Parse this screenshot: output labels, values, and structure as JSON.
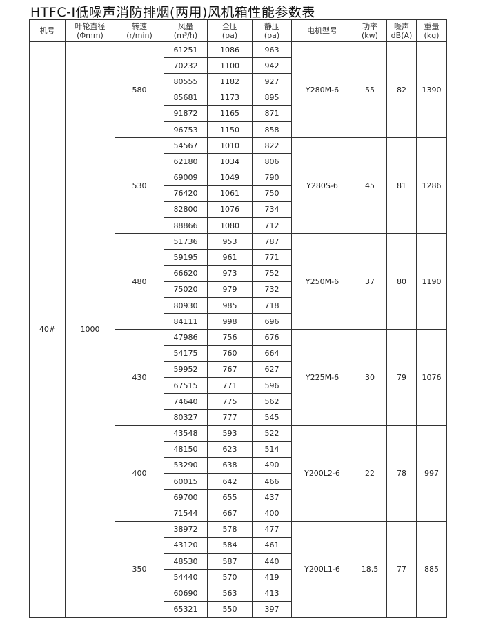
{
  "title": "HTFC-Ⅰ低噪声消防排烟(两用)风机箱性能参数表",
  "headers": [
    {
      "top": "机号",
      "bottom": ""
    },
    {
      "top": "叶轮直径",
      "bottom": "(Φmm)"
    },
    {
      "top": "转速",
      "bottom": "(r/min)"
    },
    {
      "top": "风量",
      "bottom": "(m³/h)"
    },
    {
      "top": "全压",
      "bottom": "(pa)"
    },
    {
      "top": "静压",
      "bottom": "(pa)"
    },
    {
      "top": "电机型号",
      "bottom": ""
    },
    {
      "top": "功率",
      "bottom": "(kw)"
    },
    {
      "top": "噪声",
      "bottom": "dB(A)"
    },
    {
      "top": "重量",
      "bottom": "(kg)"
    }
  ],
  "machine_no": "40#",
  "impeller_diameter": "1000",
  "groups": [
    {
      "speed": "580",
      "motor": "Y280M-6",
      "power": "55",
      "noise": "82",
      "weight": "1390",
      "rows": [
        [
          "61251",
          "1086",
          "963"
        ],
        [
          "70232",
          "1100",
          "942"
        ],
        [
          "80555",
          "1182",
          "927"
        ],
        [
          "85681",
          "1173",
          "895"
        ],
        [
          "91872",
          "1165",
          "871"
        ],
        [
          "96753",
          "1150",
          "858"
        ]
      ]
    },
    {
      "speed": "530",
      "motor": "Y280S-6",
      "power": "45",
      "noise": "81",
      "weight": "1286",
      "rows": [
        [
          "54567",
          "1010",
          "822"
        ],
        [
          "62180",
          "1034",
          "806"
        ],
        [
          "69009",
          "1049",
          "790"
        ],
        [
          "76420",
          "1061",
          "750"
        ],
        [
          "82800",
          "1076",
          "734"
        ],
        [
          "88866",
          "1080",
          "712"
        ]
      ]
    },
    {
      "speed": "480",
      "motor": "Y250M-6",
      "power": "37",
      "noise": "80",
      "weight": "1190",
      "rows": [
        [
          "51736",
          "953",
          "787"
        ],
        [
          "59195",
          "961",
          "771"
        ],
        [
          "66620",
          "973",
          "752"
        ],
        [
          "75020",
          "979",
          "732"
        ],
        [
          "80930",
          "985",
          "718"
        ],
        [
          "84111",
          "998",
          "696"
        ]
      ]
    },
    {
      "speed": "430",
      "motor": "Y225M-6",
      "power": "30",
      "noise": "79",
      "weight": "1076",
      "rows": [
        [
          "47986",
          "756",
          "676"
        ],
        [
          "54175",
          "760",
          "664"
        ],
        [
          "59952",
          "767",
          "627"
        ],
        [
          "67515",
          "771",
          "596"
        ],
        [
          "74640",
          "775",
          "562"
        ],
        [
          "80327",
          "777",
          "545"
        ]
      ]
    },
    {
      "speed": "400",
      "motor": "Y200L2-6",
      "power": "22",
      "noise": "78",
      "weight": "997",
      "rows": [
        [
          "43548",
          "593",
          "522"
        ],
        [
          "48150",
          "623",
          "514"
        ],
        [
          "53290",
          "638",
          "490"
        ],
        [
          "60015",
          "642",
          "466"
        ],
        [
          "69700",
          "655",
          "437"
        ],
        [
          "71544",
          "667",
          "400"
        ]
      ]
    },
    {
      "speed": "350",
      "motor": "Y200L1-6",
      "power": "18.5",
      "noise": "77",
      "weight": "885",
      "rows": [
        [
          "38972",
          "578",
          "477"
        ],
        [
          "43120",
          "584",
          "461"
        ],
        [
          "48530",
          "587",
          "440"
        ],
        [
          "54440",
          "570",
          "419"
        ],
        [
          "60690",
          "563",
          "413"
        ],
        [
          "65321",
          "550",
          "397"
        ]
      ]
    }
  ]
}
